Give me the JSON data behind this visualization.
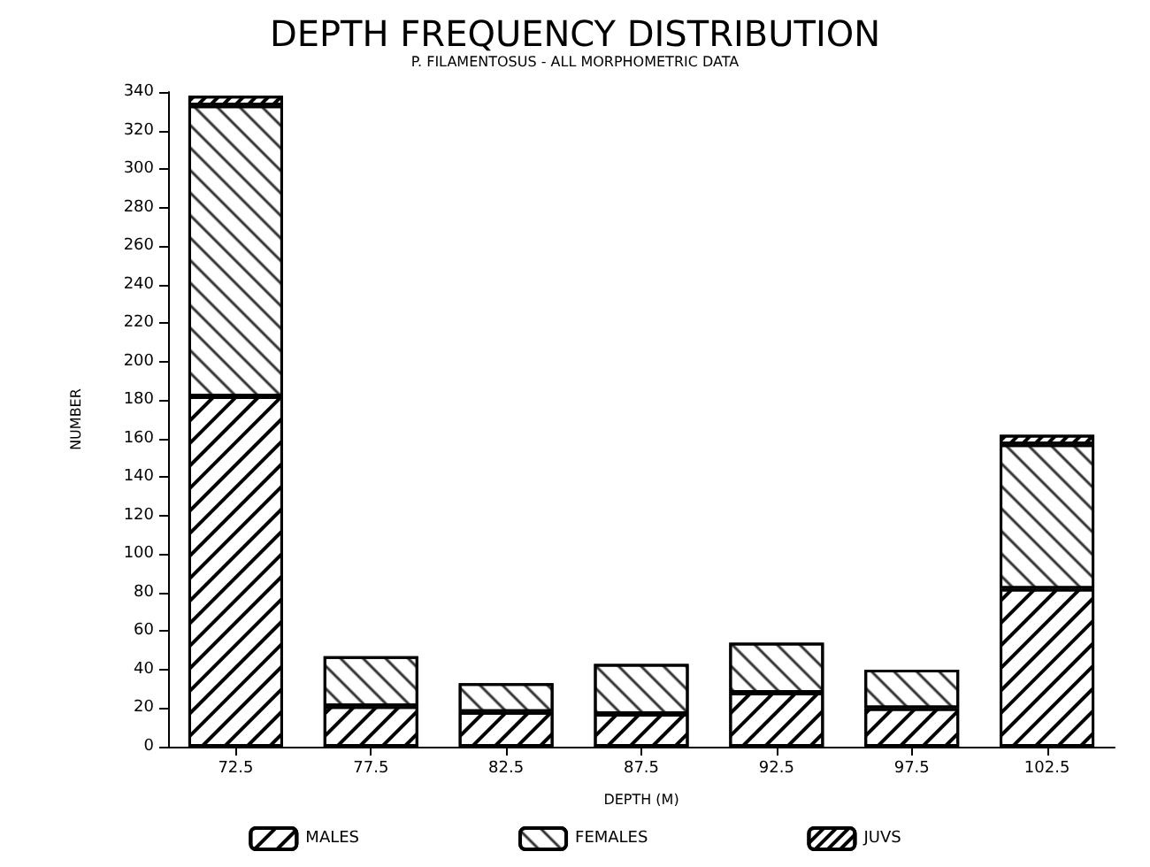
{
  "chart_data": {
    "type": "bar",
    "title": "DEPTH FREQUENCY DISTRIBUTION",
    "subtitle": "P. FILAMENTOSUS - ALL MORPHOMETRIC DATA",
    "xlabel": "DEPTH (M)",
    "ylabel": "NUMBER",
    "categories": [
      "72.5",
      "77.5",
      "82.5",
      "87.5",
      "92.5",
      "97.5",
      "102.5"
    ],
    "stacked": true,
    "series": [
      {
        "name": "MALES",
        "color": "#ffffff",
        "values": [
          182,
          21,
          18,
          17,
          28,
          20,
          82
        ]
      },
      {
        "name": "FEMALES",
        "color": "#ffffff",
        "values": [
          151,
          26,
          15,
          26,
          26,
          20,
          75
        ]
      },
      {
        "name": "JUVS",
        "color": "#ffffff",
        "values": [
          5,
          0,
          0,
          0,
          0,
          0,
          5
        ]
      }
    ],
    "ylim": [
      0,
      340
    ],
    "yticks": [
      0,
      20,
      40,
      60,
      80,
      100,
      120,
      140,
      160,
      180,
      200,
      220,
      240,
      260,
      280,
      300,
      320,
      340
    ],
    "grid": false,
    "legend": "bottom"
  }
}
